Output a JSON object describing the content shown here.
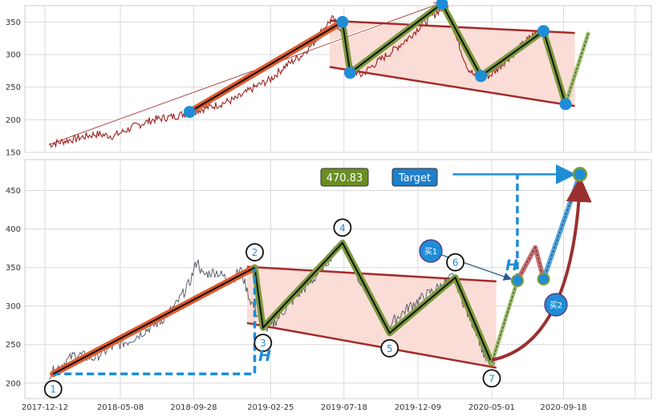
{
  "colors": {
    "background": "#ffffff",
    "grid": "#d9d9d9",
    "frame": "#cccccc",
    "top_price_line": "#9b2020",
    "bottom_price_line": "#4d5563",
    "impulse_red": "#e05a2b",
    "pattern_red": "#a52a2a",
    "pattern_fill": "#f9ddd6",
    "olive": "#7c9a3c",
    "point_blue": "#1f8dd6",
    "dash_blue": "#1f8dd6",
    "forecast_green": "#9cbf6a",
    "forecast_blue": "#4ea6e0",
    "curve_red": "#9b3030",
    "value_box": "#6b8e23",
    "target_box": "#1f7fc9"
  },
  "x_ticks": [
    "2017-12-12",
    "2018-05-08",
    "2018-09-28",
    "2019-02-25",
    "2019-07-18",
    "2019-12-09",
    "2020-05-01",
    "2020-09-18"
  ],
  "top_y_ticks": [
    "350",
    "300",
    "250",
    "200",
    "150"
  ],
  "bottom_y_ticks": [
    "450",
    "400",
    "350",
    "300",
    "250",
    "200"
  ],
  "bottom_labels": {
    "value_box": "470.83",
    "target": "Target",
    "height_1": "H",
    "height_2": "H",
    "buy_1": "买1",
    "buy_2": "买2"
  },
  "point_labels": [
    "1",
    "2",
    "3",
    "4",
    "5",
    "6",
    "7"
  ],
  "chart_data": [
    {
      "type": "line",
      "panel": "top",
      "ylim": [
        150,
        375
      ],
      "series": [
        {
          "values": [
            [
              "2017-12-20",
              162
            ],
            [
              "2018-02-15",
              172
            ],
            [
              "2018-03-20",
              178
            ],
            [
              "2018-04-25",
              175
            ],
            [
              "2018-06-05",
              190
            ],
            [
              "2018-07-10",
              200
            ],
            [
              "2018-08-20",
              205
            ],
            [
              "2018-09-28",
              213
            ],
            [
              "2018-11-10",
              222
            ],
            [
              "2018-12-20",
              232
            ],
            [
              "2019-01-25",
              250
            ],
            [
              "2019-02-25",
              262
            ],
            [
              "2019-03-25",
              282
            ],
            [
              "2019-04-25",
              298
            ],
            [
              "2019-05-20",
              318
            ],
            [
              "2019-06-10",
              342
            ],
            [
              "2019-06-25",
              355
            ],
            [
              "2019-07-05",
              345
            ],
            [
              "2019-07-18",
              335
            ],
            [
              "2019-08-01",
              280
            ],
            [
              "2019-08-20",
              268
            ],
            [
              "2019-09-15",
              285
            ],
            [
              "2019-10-20",
              305
            ],
            [
              "2019-11-20",
              325
            ],
            [
              "2019-12-20",
              348
            ],
            [
              "2020-01-20",
              368
            ],
            [
              "2020-02-05",
              372
            ],
            [
              "2020-02-20",
              330
            ],
            [
              "2020-03-15",
              280
            ],
            [
              "2020-04-05",
              260
            ],
            [
              "2020-05-01",
              270
            ],
            [
              "2020-06-10",
              300
            ],
            [
              "2020-07-20",
              330
            ],
            [
              "2020-08-10",
              335
            ],
            [
              "2020-08-30",
              290
            ],
            [
              "2020-09-22",
              228
            ]
          ]
        }
      ],
      "points": [
        [
          "2018-09-20",
          212
        ],
        [
          "2019-07-15",
          350
        ],
        [
          "2019-07-30",
          272
        ],
        [
          "2020-01-25",
          378
        ],
        [
          "2020-04-10",
          267
        ],
        [
          "2020-08-10",
          336
        ],
        [
          "2020-09-22",
          224
        ]
      ],
      "impulse": [
        [
          "2018-09-20",
          212
        ],
        [
          "2019-07-15",
          350
        ]
      ],
      "wave": [
        [
          "2019-07-15",
          350
        ],
        [
          "2019-07-30",
          272
        ],
        [
          "2020-01-25",
          378
        ],
        [
          "2020-04-10",
          267
        ],
        [
          "2020-08-10",
          336
        ],
        [
          "2020-09-22",
          224
        ]
      ],
      "channel_upper": [
        [
          "2019-06-20",
          352
        ],
        [
          "2020-10-10",
          333
        ]
      ],
      "channel_lower": [
        [
          "2019-06-20",
          281
        ],
        [
          "2020-10-10",
          221
        ]
      ],
      "projection": [
        [
          "2020-09-22",
          224
        ],
        [
          "2020-11-05",
          332
        ]
      ],
      "trend_arrow": [
        [
          "2017-12-20",
          162
        ],
        [
          "2020-01-20",
          378
        ]
      ]
    },
    {
      "type": "line",
      "panel": "bottom",
      "ylim": [
        180,
        490
      ],
      "series": [
        {
          "values": [
            [
              "2017-12-20",
              212
            ],
            [
              "2018-01-10",
              222
            ],
            [
              "2018-02-10",
              238
            ],
            [
              "2018-03-15",
              232
            ],
            [
              "2018-04-20",
              246
            ],
            [
              "2018-05-25",
              255
            ],
            [
              "2018-06-25",
              268
            ],
            [
              "2018-07-25",
              280
            ],
            [
              "2018-08-25",
              302
            ],
            [
              "2018-09-20",
              330
            ],
            [
              "2018-10-05",
              360
            ],
            [
              "2018-10-15",
              340
            ],
            [
              "2018-11-10",
              345
            ],
            [
              "2018-12-10",
              332
            ],
            [
              "2018-12-28",
              348
            ],
            [
              "2019-01-15",
              310
            ],
            [
              "2019-02-05",
              282
            ],
            [
              "2019-02-20",
              268
            ],
            [
              "2019-03-20",
              292
            ],
            [
              "2019-04-20",
              315
            ],
            [
              "2019-05-20",
              335
            ],
            [
              "2019-06-20",
              362
            ],
            [
              "2019-07-10",
              380
            ],
            [
              "2019-07-25",
              372
            ],
            [
              "2019-08-20",
              330
            ],
            [
              "2019-09-20",
              300
            ],
            [
              "2019-10-10",
              272
            ],
            [
              "2019-10-25",
              282
            ],
            [
              "2019-11-20",
              298
            ],
            [
              "2019-12-20",
              312
            ],
            [
              "2020-01-20",
              325
            ],
            [
              "2020-02-15",
              338
            ],
            [
              "2020-02-25",
              325
            ],
            [
              "2020-03-15",
              290
            ],
            [
              "2020-04-01",
              268
            ],
            [
              "2020-04-20",
              228
            ]
          ]
        }
      ],
      "points": [
        [
          "2017-12-28",
          212
        ],
        [
          "2019-01-25",
          350
        ],
        [
          "2019-02-10",
          272
        ],
        [
          "2019-07-15",
          382
        ],
        [
          "2019-10-15",
          265
        ],
        [
          "2020-02-20",
          337
        ],
        [
          "2020-05-01",
          226
        ]
      ],
      "impulse": [
        [
          "2017-12-28",
          212
        ],
        [
          "2019-01-25",
          350
        ]
      ],
      "wave": [
        [
          "2019-01-25",
          350
        ],
        [
          "2019-02-10",
          272
        ],
        [
          "2019-07-15",
          382
        ],
        [
          "2019-10-15",
          265
        ],
        [
          "2020-02-20",
          337
        ],
        [
          "2020-05-01",
          226
        ]
      ],
      "channel_upper": [
        [
          "2019-01-10",
          351
        ],
        [
          "2020-05-10",
          332
        ]
      ],
      "channel_lower": [
        [
          "2019-01-10",
          278
        ],
        [
          "2020-05-10",
          220
        ]
      ],
      "forecast_up": [
        [
          "2020-05-01",
          226
        ],
        [
          "2020-06-20",
          333
        ]
      ],
      "forecast_pullback": [
        [
          "2020-06-20",
          333
        ],
        [
          "2020-07-25",
          376
        ],
        [
          "2020-08-10",
          335
        ]
      ],
      "forecast_target": [
        [
          "2020-08-10",
          335
        ],
        [
          "2020-10-20",
          470.83
        ]
      ],
      "target": [
        "2020-10-20",
        470.83
      ],
      "buy_points": [
        [
          "2020-06-20",
          333
        ],
        [
          "2020-08-10",
          335
        ]
      ],
      "height_dash_1": [
        [
          "2017-12-28",
          212
        ],
        [
          "2019-01-25",
          212
        ],
        [
          "2019-01-25",
          350
        ]
      ],
      "height_dash_2": [
        [
          "2020-06-20",
          333
        ],
        [
          "2020-06-20",
          470.83
        ]
      ],
      "target_arrow": [
        [
          "2020-02-15",
          470.83
        ],
        [
          "2020-10-20",
          470.83
        ]
      ],
      "curve": [
        [
          "2020-05-01",
          230
        ],
        [
          "2020-10-20",
          460
        ]
      ]
    }
  ]
}
